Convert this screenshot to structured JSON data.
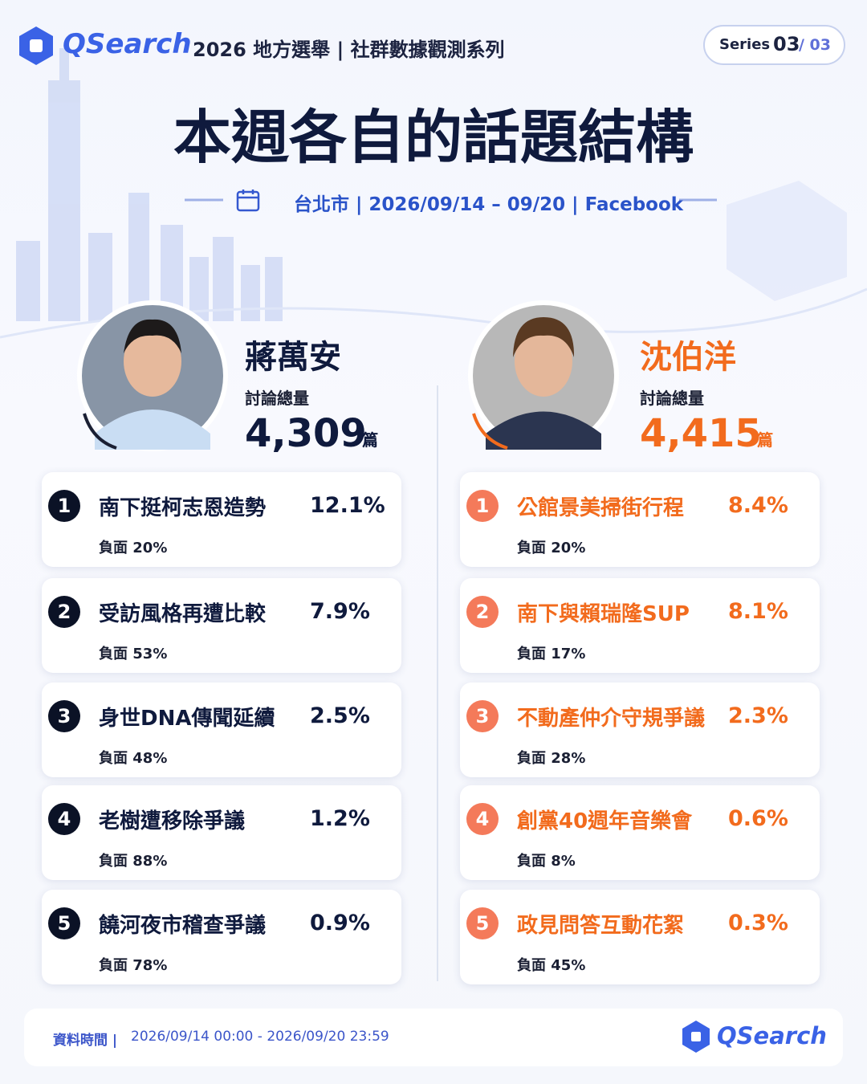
{
  "header": {
    "logo": "QSearch",
    "series_title": "2026 地方選舉 | 社群數據觀測系列",
    "series_label": "Series",
    "series_current": "03",
    "series_total": "/ 03"
  },
  "title": "本週各自的話題結構",
  "subtitle": "台北市 | 2026/09/14 – 09/20 | Facebook",
  "candidates": [
    {
      "name": "蔣萬安",
      "total_label": "討論總量",
      "total": "4,309",
      "unit": "篇",
      "topics": [
        {
          "rank": 1,
          "title": "南下挺柯志恩造勢",
          "share": "12.1%",
          "negative": "負面 20%"
        },
        {
          "rank": 2,
          "title": "受訪風格再遭比較",
          "share": "7.9%",
          "negative": "負面 53%"
        },
        {
          "rank": 3,
          "title": "身世DNA傳聞延續",
          "share": "2.5%",
          "negative": "負面 48%"
        },
        {
          "rank": 4,
          "title": "老樹遭移除爭議",
          "share": "1.2%",
          "negative": "負面 88%"
        },
        {
          "rank": 5,
          "title": "饒河夜市稽查爭議",
          "share": "0.9%",
          "negative": "負面 78%"
        }
      ]
    },
    {
      "name": "沈伯洋",
      "total_label": "討論總量",
      "total": "4,415",
      "unit": "篇",
      "topics": [
        {
          "rank": 1,
          "title": "公館景美掃街行程",
          "share": "8.4%",
          "negative": "負面 20%"
        },
        {
          "rank": 2,
          "title": "南下與賴瑞隆SUP",
          "share": "8.1%",
          "negative": "負面 17%"
        },
        {
          "rank": 3,
          "title": "不動產仲介守規爭議",
          "share": "2.3%",
          "negative": "負面 28%"
        },
        {
          "rank": 4,
          "title": "創黨40週年音樂會",
          "share": "0.6%",
          "negative": "負面 8%"
        },
        {
          "rank": 5,
          "title": "政見問答互動花絮",
          "share": "0.3%",
          "negative": "負面 45%"
        }
      ]
    }
  ],
  "footer": {
    "label": "資料時間 |",
    "range": "2026/09/14 00:00 - 2026/09/20 23:59",
    "logo": "QSearch"
  }
}
